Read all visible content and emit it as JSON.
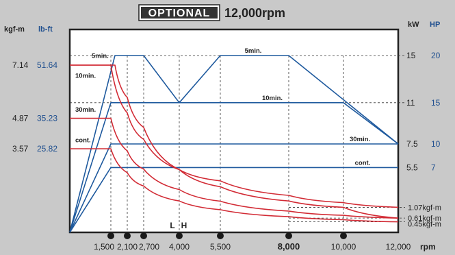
{
  "title": {
    "badge": "OPTIONAL",
    "text": "12,000rpm"
  },
  "left_axis": {
    "unit_kgfm": "kgf-m",
    "unit_lbft": "lb-ft",
    "ticks": [
      {
        "kgfm": "7.14",
        "lbft": "51.64"
      },
      {
        "kgfm": "4.87",
        "lbft": "35.23"
      },
      {
        "kgfm": "3.57",
        "lbft": "25.82"
      }
    ]
  },
  "right_axis": {
    "unit_kw": "kW",
    "unit_hp": "HP",
    "ticks": [
      {
        "kw": "15",
        "hp": "20"
      },
      {
        "kw": "11",
        "hp": "15"
      },
      {
        "kw": "7.5",
        "hp": "10"
      },
      {
        "kw": "5.5",
        "hp": "7"
      }
    ],
    "torque_end_labels": [
      "1.07kgf-m",
      "0.61kgf-m",
      "0.45kgf-m"
    ]
  },
  "x_axis": {
    "unit": "rpm",
    "ticks": [
      "1,500",
      "2,100",
      "2,700",
      "4,000",
      "5,500",
      "8,000",
      "10,000",
      "12,000"
    ],
    "gear_labels": [
      "L",
      "H"
    ]
  },
  "colors": {
    "background": "#c9c9c9",
    "plot_bg": "#ffffff",
    "power": "#1f5a9e",
    "torque": "#d22b35",
    "axis_blue": "#1f4f8f"
  },
  "chart_data": {
    "type": "line",
    "title": "OPTIONAL 12,000rpm",
    "xlabel": "rpm",
    "xlim": [
      0,
      12000
    ],
    "series": [
      {
        "name": "5min.",
        "kind": "power",
        "unit": "kW",
        "points": [
          [
            0,
            0
          ],
          [
            1650,
            15
          ],
          [
            2100,
            15
          ],
          [
            2700,
            15
          ],
          [
            4000,
            11
          ],
          [
            5500,
            15
          ],
          [
            8000,
            15
          ],
          [
            12000,
            7.5
          ]
        ]
      },
      {
        "name": "10min.",
        "kind": "power",
        "unit": "kW",
        "points": [
          [
            0,
            0
          ],
          [
            1500,
            11
          ],
          [
            4000,
            11
          ],
          [
            10000,
            11
          ],
          [
            12000,
            7.5
          ]
        ]
      },
      {
        "name": "30min.",
        "kind": "power",
        "unit": "kW",
        "points": [
          [
            0,
            0
          ],
          [
            1500,
            7.5
          ],
          [
            12000,
            7.5
          ]
        ]
      },
      {
        "name": "cont.",
        "kind": "power",
        "unit": "kW",
        "points": [
          [
            0,
            0
          ],
          [
            1500,
            5.5
          ],
          [
            12000,
            5.5
          ]
        ]
      },
      {
        "name": "5min.",
        "kind": "torque",
        "unit": "kgf-m",
        "points": [
          [
            0,
            7.14
          ],
          [
            1650,
            7.14
          ],
          [
            2100,
            5.76
          ],
          [
            2700,
            4.48
          ],
          [
            4000,
            2.68
          ],
          [
            5500,
            2.2
          ],
          [
            8000,
            1.58
          ],
          [
            10000,
            1.27
          ],
          [
            12000,
            1.07
          ]
        ]
      },
      {
        "name": "10min.",
        "kind": "torque",
        "unit": "kgf-m",
        "points": [
          [
            0,
            7.14
          ],
          [
            1500,
            7.14
          ],
          [
            2100,
            5.1
          ],
          [
            2700,
            3.97
          ],
          [
            4000,
            2.68
          ],
          [
            5500,
            1.95
          ],
          [
            8000,
            1.34
          ],
          [
            10000,
            1.07
          ],
          [
            12000,
            0.61
          ]
        ]
      },
      {
        "name": "30min.",
        "kind": "torque",
        "unit": "kgf-m",
        "points": [
          [
            0,
            4.87
          ],
          [
            1500,
            4.87
          ],
          [
            2100,
            3.48
          ],
          [
            2700,
            2.7
          ],
          [
            4000,
            1.83
          ],
          [
            5500,
            1.33
          ],
          [
            8000,
            0.91
          ],
          [
            10000,
            0.73
          ],
          [
            12000,
            0.61
          ]
        ]
      },
      {
        "name": "cont.",
        "kind": "torque",
        "unit": "kgf-m",
        "points": [
          [
            0,
            3.57
          ],
          [
            1500,
            3.57
          ],
          [
            2100,
            2.55
          ],
          [
            2700,
            1.98
          ],
          [
            4000,
            1.34
          ],
          [
            5500,
            0.97
          ],
          [
            8000,
            0.67
          ],
          [
            10000,
            0.54
          ],
          [
            12000,
            0.45
          ]
        ]
      }
    ]
  }
}
